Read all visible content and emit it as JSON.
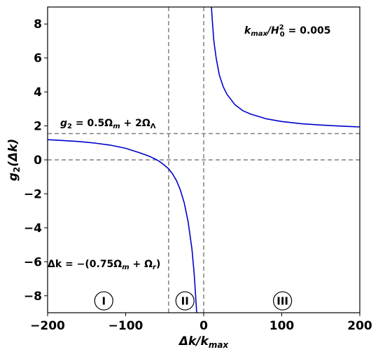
{
  "chart_data": {
    "type": "line",
    "title": "",
    "xlabel": "Δk/k",
    "xlabel_sub": "max",
    "ylabel": "g",
    "ylabel_sub": "2",
    "ylabel_tail": "(Δk)",
    "xlim": [
      -200,
      200
    ],
    "ylim": [
      -9,
      9
    ],
    "xticks": [
      -200,
      -100,
      0,
      100,
      200
    ],
    "xtick_labels": [
      "−200",
      "−100",
      "0",
      "100",
      "200"
    ],
    "yticks": [
      -8,
      -6,
      -4,
      -2,
      0,
      2,
      4,
      6,
      8
    ],
    "ytick_labels": [
      "−8",
      "−6",
      "−4",
      "−2",
      "0",
      "2",
      "4",
      "6",
      "8"
    ],
    "grid": false,
    "line_color": "#0000cc",
    "ref_line_color": "#808080",
    "series": [
      {
        "values_left": [
          [
            -200,
            1.19
          ],
          [
            -180,
            1.14
          ],
          [
            -160,
            1.08
          ],
          [
            -140,
            0.99
          ],
          [
            -120,
            0.87
          ],
          [
            -100,
            0.68
          ],
          [
            -80,
            0.39
          ],
          [
            -70,
            0.22
          ],
          [
            -60,
            0.0
          ],
          [
            -55,
            -0.15
          ],
          [
            -50,
            -0.33
          ],
          [
            -45,
            -0.52
          ],
          [
            -40,
            -0.82
          ],
          [
            -35,
            -1.21
          ],
          [
            -30,
            -1.75
          ],
          [
            -25,
            -2.52
          ],
          [
            -20,
            -3.63
          ],
          [
            -15,
            -5.28
          ],
          [
            -12,
            -6.81
          ],
          [
            -10,
            -8.3
          ],
          [
            -9,
            -9.0
          ]
        ],
        "values_right": [
          [
            10,
            9.0
          ],
          [
            11,
            8.2
          ],
          [
            13,
            7.0
          ],
          [
            16,
            6.0
          ],
          [
            20,
            5.0
          ],
          [
            25,
            4.3
          ],
          [
            30,
            3.85
          ],
          [
            40,
            3.25
          ],
          [
            50,
            2.9
          ],
          [
            60,
            2.7
          ],
          [
            80,
            2.42
          ],
          [
            100,
            2.26
          ],
          [
            125,
            2.13
          ],
          [
            150,
            2.05
          ],
          [
            175,
            1.99
          ],
          [
            200,
            1.94
          ]
        ]
      }
    ],
    "reference_lines": {
      "horizontal": [
        1.55,
        0
      ],
      "vertical": [
        -45,
        0
      ]
    },
    "annotations": {
      "kmax_ratio": {
        "main": "k",
        "sub": "max",
        "mid": "/H",
        "sup": "2",
        "sub2": "0",
        "tail": " = 0.005"
      },
      "g2_value": {
        "main": "g",
        "sub": "2",
        "tail": " = 0.5Ω",
        "sub2": "m",
        "tail2": " + 2Ω",
        "sub3": "Λ"
      },
      "delta_k": {
        "main": "Δk = −(0.75Ω",
        "sub": "m",
        "mid": " + Ω",
        "sub2": "r",
        "tail": ")"
      }
    },
    "regions": [
      {
        "label": "I",
        "x": -128
      },
      {
        "label": "II",
        "x": -24
      },
      {
        "label": "III",
        "x": 101
      }
    ]
  }
}
